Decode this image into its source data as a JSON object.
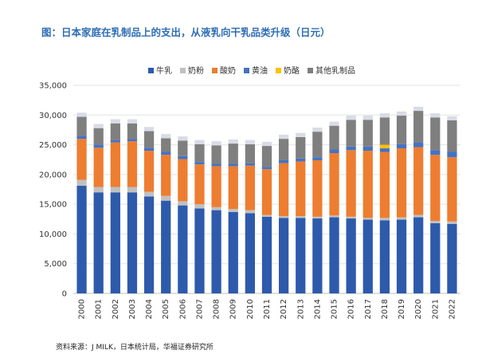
{
  "title": "图：日本家庭在乳制品上的支出，从液乳向干乳品类升级（日元）",
  "source": "资料来源：J MILK，日本统计局，华福证券研究所",
  "chart_data": {
    "type": "bar",
    "stacked": true,
    "categories": [
      "2000",
      "2001",
      "2002",
      "2003",
      "2004",
      "2005",
      "2006",
      "2007",
      "2008",
      "2009",
      "2010",
      "2011",
      "2012",
      "2013",
      "2014",
      "2015",
      "2016",
      "2017",
      "2018",
      "2019",
      "2020",
      "2021",
      "2022"
    ],
    "series": [
      {
        "name": "牛乳",
        "color": "#2e5aac",
        "values": [
          18100,
          17000,
          17000,
          17000,
          16300,
          15600,
          14800,
          14300,
          14000,
          13700,
          13500,
          12900,
          12700,
          12700,
          12600,
          12800,
          12600,
          12400,
          12300,
          12400,
          12800,
          11800,
          11700
        ]
      },
      {
        "name": "奶粉",
        "color": "#c0c0c0",
        "values": [
          1000,
          900,
          900,
          900,
          800,
          800,
          700,
          700,
          500,
          500,
          500,
          300,
          300,
          300,
          300,
          300,
          300,
          300,
          400,
          400,
          400,
          400,
          400
        ]
      },
      {
        "name": "酸奶",
        "color": "#ed7d31",
        "values": [
          6900,
          6600,
          7500,
          7700,
          6900,
          6900,
          7100,
          6700,
          6900,
          7200,
          7500,
          7700,
          8900,
          9200,
          9500,
          10500,
          11200,
          11300,
          11100,
          11600,
          11400,
          11100,
          10800
        ]
      },
      {
        "name": "黄油",
        "color": "#4472c4",
        "values": [
          500,
          500,
          400,
          400,
          500,
          500,
          500,
          400,
          400,
          400,
          400,
          400,
          500,
          500,
          500,
          600,
          600,
          700,
          600,
          700,
          800,
          800,
          900
        ]
      },
      {
        "name": "奶酪",
        "color": "#ffc000",
        "values": [
          0,
          0,
          0,
          0,
          0,
          0,
          0,
          0,
          0,
          0,
          0,
          0,
          0,
          0,
          0,
          0,
          0,
          0,
          600,
          0,
          0,
          0,
          0
        ]
      },
      {
        "name": "其他乳制品",
        "color": "#7f7f7f",
        "values": [
          3200,
          2800,
          2800,
          2600,
          2800,
          2300,
          2600,
          3000,
          3100,
          3400,
          3200,
          3500,
          3600,
          3600,
          4300,
          4000,
          4500,
          4500,
          4600,
          4800,
          5300,
          5500,
          5300
        ]
      },
      {
        "name": "",
        "color": "#d9dce6",
        "legend": false,
        "values": [
          700,
          700,
          700,
          700,
          700,
          700,
          700,
          700,
          700,
          700,
          700,
          700,
          700,
          700,
          700,
          700,
          700,
          700,
          700,
          700,
          700,
          700,
          700
        ]
      }
    ],
    "ylim": [
      0,
      35000
    ],
    "yticks": [
      "0",
      "5,000",
      "10,000",
      "15,000",
      "20,000",
      "25,000",
      "30,000",
      "35,000"
    ],
    "grid": true,
    "legend_position": "top"
  }
}
